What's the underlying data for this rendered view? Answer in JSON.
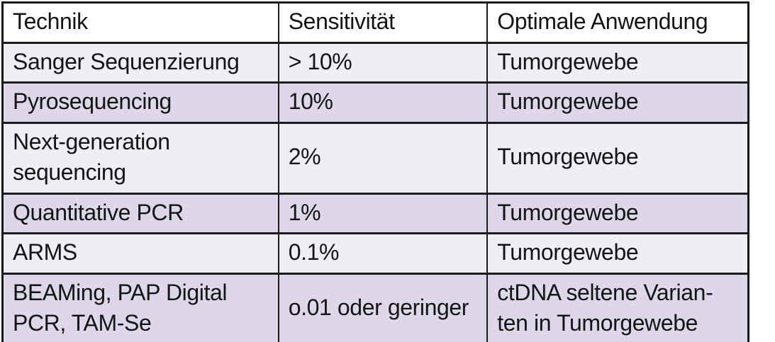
{
  "table": {
    "columns": [
      "Technik",
      "Sensitivität",
      "Optimale Anwendung"
    ],
    "rows": [
      [
        "Sanger Sequenzierung",
        "> 10%",
        "Tumorgewebe"
      ],
      [
        "Pyrosequencing",
        "10%",
        "Tumorgewebe"
      ],
      [
        "Next-generation\nsequencing",
        "2%",
        "Tumorgewebe"
      ],
      [
        "Quantitative PCR",
        "1%",
        "Tumorgewebe"
      ],
      [
        "ARMS",
        "0.1%",
        "Tumorgewebe"
      ],
      [
        "BEAMing, PAP Digital\nPCR, TAM-Se",
        "o.01 oder geringer",
        "ctDNA seltene Varian-\nten in Tumorgewebe"
      ]
    ],
    "colors": {
      "header_bg": "#ffffff",
      "row_light": "#f0edf5",
      "row_dark": "#ded7e9",
      "border": "#1b1b1b",
      "text": "#141414"
    }
  },
  "chart_data": {
    "type": "table",
    "title": "",
    "columns": [
      "Technik",
      "Sensitivität",
      "Optimale Anwendung"
    ],
    "rows": [
      [
        "Sanger Sequenzierung",
        "> 10%",
        "Tumorgewebe"
      ],
      [
        "Pyrosequencing",
        "10%",
        "Tumorgewebe"
      ],
      [
        "Next-generation sequencing",
        "2%",
        "Tumorgewebe"
      ],
      [
        "Quantitative PCR",
        "1%",
        "Tumorgewebe"
      ],
      [
        "ARMS",
        "0.1%",
        "Tumorgewebe"
      ],
      [
        "BEAMing, PAP Digital PCR, TAM-Se",
        "o.01 oder geringer",
        "ctDNA seltene Varianten in Tumorgewebe"
      ]
    ]
  }
}
